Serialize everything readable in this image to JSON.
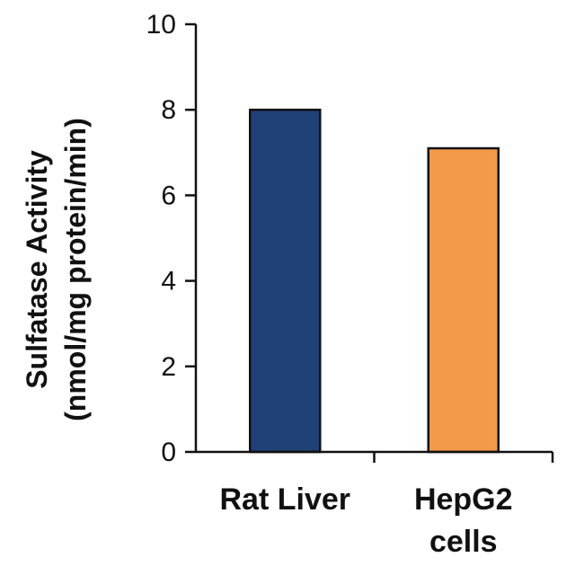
{
  "chart_data": {
    "type": "bar",
    "categories": [
      [
        "Rat Liver"
      ],
      [
        "HepG2",
        "cells"
      ]
    ],
    "values": [
      8.0,
      7.1
    ],
    "bar_colors": [
      "#1f4178",
      "#f39a4a"
    ],
    "bar_edge_color": "#111111",
    "title": "",
    "ylabel_lines": [
      "Sulfatase  Activity",
      "(nmol/mg protein/min)"
    ],
    "xlabel": "",
    "ylim": [
      0,
      10
    ],
    "yticks": [
      "0",
      "2",
      "4",
      "6",
      "8",
      "10"
    ],
    "grid": false,
    "legend": "none"
  }
}
